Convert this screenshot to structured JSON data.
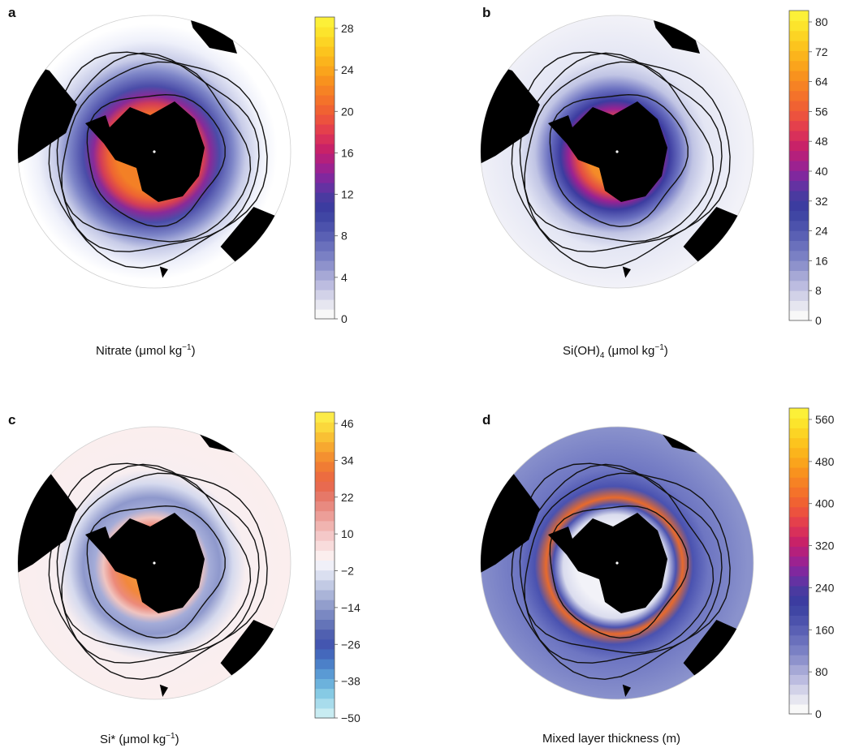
{
  "panels": [
    {
      "letter": "a",
      "caption_main": "Nitrate (μmol kg",
      "caption_sup": "−1",
      "caption_end": ")",
      "colorbar": {
        "ticks": [
          "28",
          "24",
          "20",
          "16",
          "12",
          "8",
          "4",
          "0"
        ],
        "colors": [
          "#f8f8f8",
          "#e6e6f0",
          "#d2d2e8",
          "#bcbce0",
          "#a6a8d6",
          "#8e92cc",
          "#7a80c4",
          "#6a70bc",
          "#5a60b4",
          "#4c52ac",
          "#4046a4",
          "#3c3ca0",
          "#4a3aa0",
          "#6432a2",
          "#80289e",
          "#9c2290",
          "#b4207c",
          "#c82268",
          "#d8305a",
          "#e4404c",
          "#ec523e",
          "#f06232",
          "#f4722a",
          "#f68224",
          "#f8921e",
          "#faa41c",
          "#fbb41c",
          "#fcc41e",
          "#fcd424",
          "#fce42c",
          "#fcf038"
        ]
      },
      "map_stops": [
        [
          0.06,
          "#ffffff"
        ],
        [
          0.18,
          "#eef0fa"
        ],
        [
          0.3,
          "#c8cce8"
        ],
        [
          0.4,
          "#7e86c8"
        ],
        [
          0.5,
          "#4a4ca8"
        ],
        [
          0.57,
          "#8a2a98"
        ],
        [
          0.62,
          "#d23c58"
        ],
        [
          0.68,
          "#ee6432"
        ],
        [
          0.74,
          "#f38026"
        ],
        [
          1.0,
          "#f38026"
        ]
      ]
    },
    {
      "letter": "b",
      "caption_main": "Si(OH)",
      "caption_sub": "4",
      "caption_mid": " (μmol kg",
      "caption_sup": "−1",
      "caption_end": ")",
      "colorbar": {
        "ticks": [
          "80",
          "72",
          "64",
          "56",
          "48",
          "40",
          "32",
          "24",
          "16",
          "8",
          "0"
        ],
        "colors": [
          "#f8f8f8",
          "#e6e6f0",
          "#d2d2e8",
          "#bcbce0",
          "#a6a8d6",
          "#8e92cc",
          "#7a80c4",
          "#6a70bc",
          "#5a60b4",
          "#4c52ac",
          "#4046a4",
          "#3c3ca0",
          "#4a3aa0",
          "#6432a2",
          "#80289e",
          "#9c2290",
          "#b4207c",
          "#c82268",
          "#d8305a",
          "#e4404c",
          "#ec523e",
          "#f06232",
          "#f4722a",
          "#f68224",
          "#f8921e",
          "#faa41c",
          "#fbb41c",
          "#fcc41e",
          "#fcd424",
          "#fce42c",
          "#fcf038"
        ]
      },
      "map_stops": [
        [
          0.0,
          "#f2f2f8"
        ],
        [
          0.3,
          "#e4e6f4"
        ],
        [
          0.42,
          "#c0c4e4"
        ],
        [
          0.52,
          "#6a70c0"
        ],
        [
          0.6,
          "#3c3ca0"
        ],
        [
          0.66,
          "#9a2292"
        ],
        [
          0.72,
          "#e24a46"
        ],
        [
          0.8,
          "#f48a28"
        ],
        [
          1.0,
          "#f8a824"
        ]
      ]
    },
    {
      "letter": "c",
      "caption_main": "Si* (μmol kg",
      "caption_sup": "−1",
      "caption_end": ")",
      "colorbar": {
        "ticks": [
          "46",
          "34",
          "22",
          "10",
          "−2",
          "−14",
          "−26",
          "−38",
          "−50"
        ],
        "colors": [
          "#c8ecf2",
          "#a8dcec",
          "#86cae4",
          "#6cb2dc",
          "#5a9ad4",
          "#4c80c8",
          "#4468bc",
          "#4456b0",
          "#5060b0",
          "#6474b8",
          "#7a88c2",
          "#929ecc",
          "#aab4d8",
          "#c2cae4",
          "#dadff0",
          "#f0f0f8",
          "#fbeeee",
          "#f8dcdc",
          "#f4c8c8",
          "#f0b4b0",
          "#ec9e98",
          "#e88a80",
          "#e67868",
          "#e86a50",
          "#ec6c40",
          "#f07c34",
          "#f49030",
          "#f7a830",
          "#f9c034",
          "#fbd83c",
          "#fceb48"
        ]
      },
      "map_stops": [
        [
          0.0,
          "#fbeeee"
        ],
        [
          0.3,
          "#f8eef0"
        ],
        [
          0.4,
          "#d6daee"
        ],
        [
          0.5,
          "#8e98cc"
        ],
        [
          0.58,
          "#a4acd8"
        ],
        [
          0.64,
          "#f0c4c0"
        ],
        [
          0.7,
          "#ec8a7a"
        ],
        [
          0.78,
          "#f2883c"
        ],
        [
          1.0,
          "#f6b034"
        ]
      ]
    },
    {
      "letter": "d",
      "caption_main": "Mixed layer thickness (m)",
      "colorbar": {
        "ticks": [
          "560",
          "480",
          "400",
          "320",
          "240",
          "160",
          "80",
          "0"
        ],
        "colors": [
          "#f8f8f8",
          "#e6e6f0",
          "#d2d2e8",
          "#bcbce0",
          "#a6a8d6",
          "#8e92cc",
          "#7a80c4",
          "#6a70bc",
          "#5a60b4",
          "#4c52ac",
          "#4046a4",
          "#3c3ca0",
          "#4a3aa0",
          "#6432a2",
          "#80289e",
          "#9c2290",
          "#b4207c",
          "#c82268",
          "#d8305a",
          "#e4404c",
          "#ec523e",
          "#f06232",
          "#f4722a",
          "#f68224",
          "#f8921e",
          "#faa41c",
          "#fbb41c",
          "#fcc41e",
          "#fcd424",
          "#fce42c",
          "#fcf038"
        ]
      },
      "map_stops": [
        [
          0.0,
          "#8a92cc"
        ],
        [
          0.3,
          "#6e76c2"
        ],
        [
          0.42,
          "#4a52b0"
        ],
        [
          0.5,
          "#e86a2c"
        ],
        [
          0.55,
          "#4a52b0"
        ],
        [
          0.62,
          "#dadcee"
        ],
        [
          0.72,
          "#f2f2f8"
        ],
        [
          1.0,
          "#f4f4f8"
        ]
      ]
    }
  ]
}
